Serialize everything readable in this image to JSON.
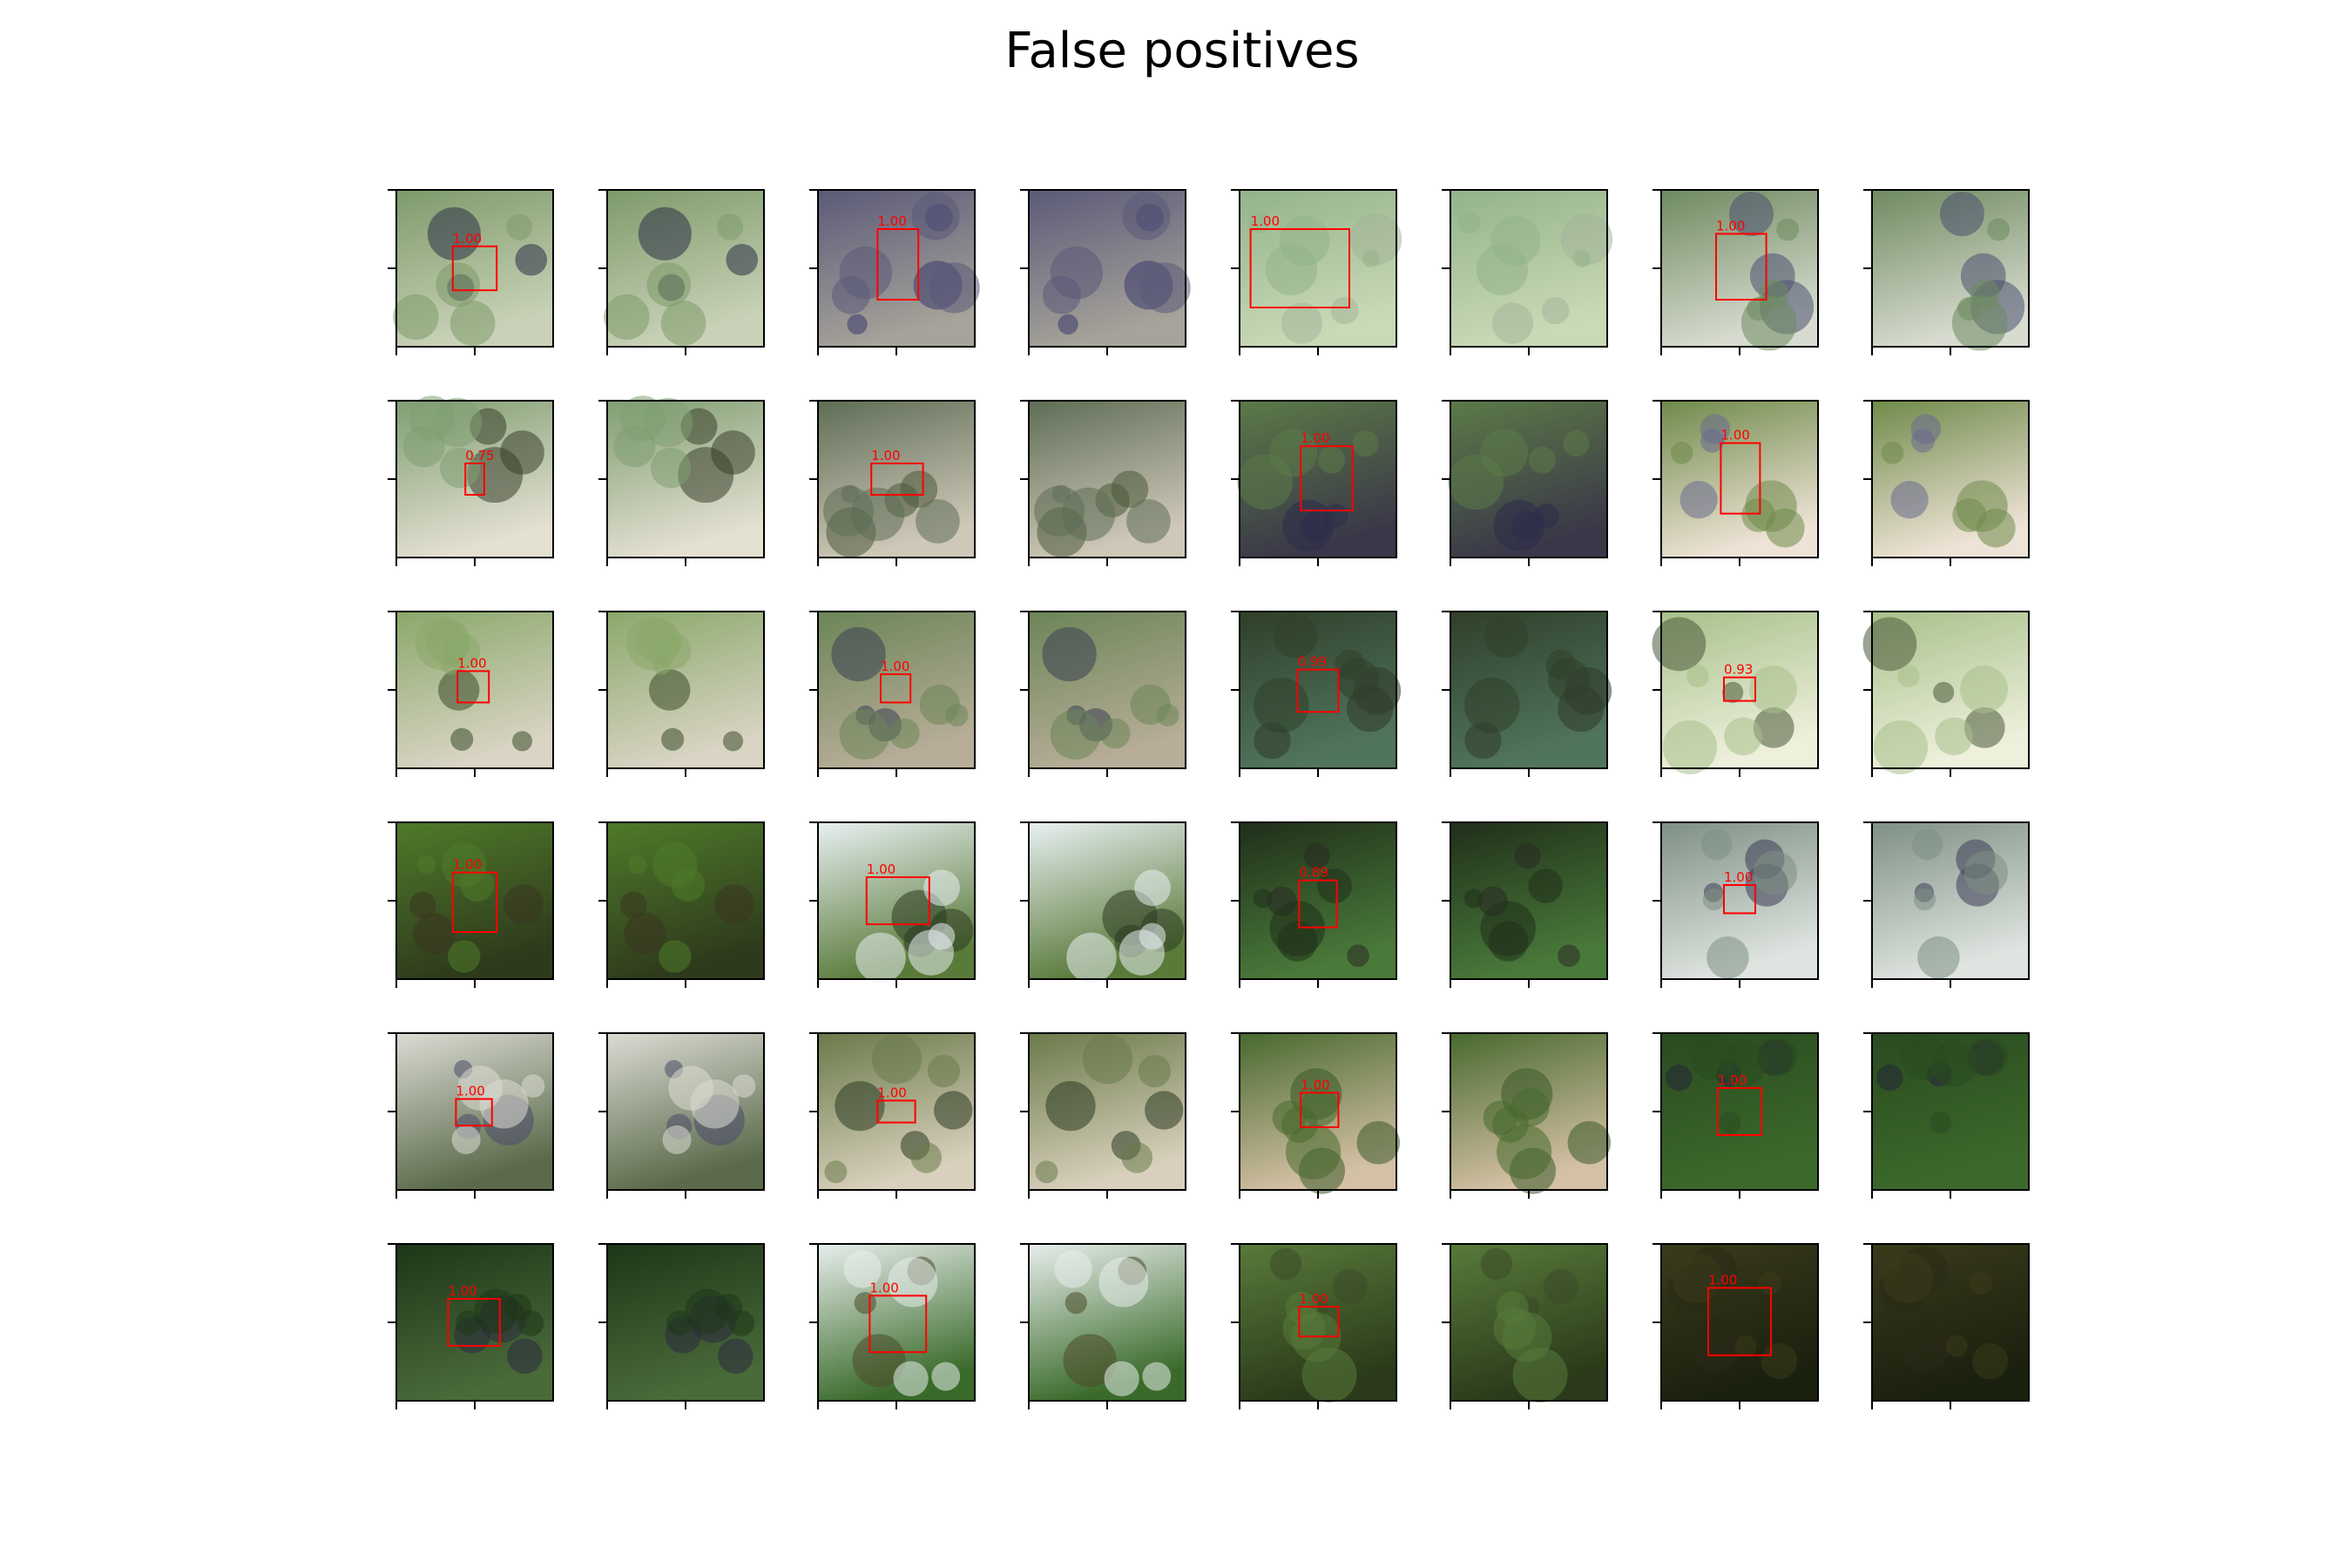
{
  "title": "False positives",
  "rows": [
    [
      "1.00",
      "1.00",
      "1.00",
      "1.00"
    ],
    [
      "0.75",
      "1.00",
      "1.00",
      "1.00"
    ],
    [
      "1.00",
      "1.00",
      "0.99",
      "0.93"
    ],
    [
      "1.00",
      "1.00",
      "0.89",
      "1.00"
    ],
    [
      "1.00",
      "1.00",
      "1.00",
      "1.00"
    ],
    [
      "1.00",
      "1.00",
      "1.00",
      "1.00"
    ]
  ]
}
